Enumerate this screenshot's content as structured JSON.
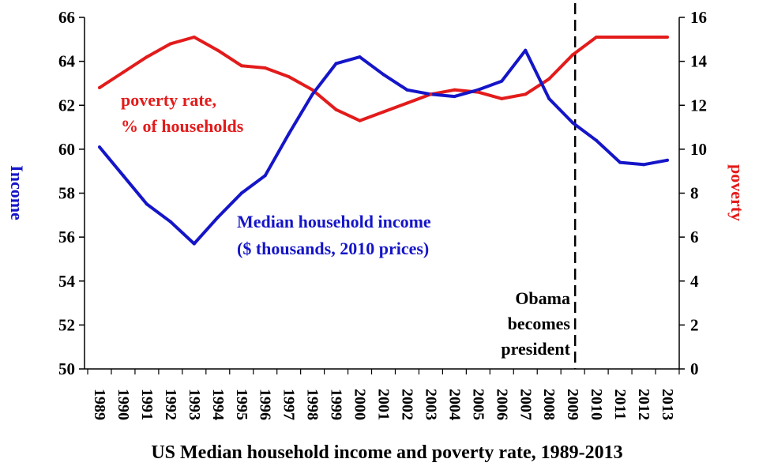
{
  "chart_data": {
    "type": "line",
    "title": "US Median household income and poverty rate, 1989-2013",
    "x": [
      "1989",
      "1990",
      "1991",
      "1992",
      "1993",
      "1994",
      "1995",
      "1996",
      "1997",
      "1998",
      "1999",
      "2000",
      "2001",
      "2002",
      "2003",
      "2004",
      "2005",
      "2006",
      "2007",
      "2008",
      "2009",
      "2010",
      "2011",
      "2012",
      "2013"
    ],
    "series": [
      {
        "name": "Median household income ($ thousands, 2010 prices)",
        "axis": "left",
        "color": "#1515c8",
        "values": [
          60.1,
          58.8,
          57.5,
          56.7,
          55.7,
          56.9,
          58.0,
          58.8,
          60.7,
          62.5,
          63.9,
          64.2,
          63.4,
          62.7,
          62.5,
          62.4,
          62.7,
          63.1,
          64.5,
          62.3,
          61.2,
          60.4,
          59.4,
          59.3,
          59.5
        ]
      },
      {
        "name": "poverty rate, % of households",
        "axis": "right",
        "color": "#e31b1b",
        "values": [
          12.8,
          13.5,
          14.2,
          14.8,
          15.1,
          14.5,
          13.8,
          13.7,
          13.3,
          12.7,
          11.8,
          11.3,
          11.7,
          12.1,
          12.5,
          12.7,
          12.6,
          12.3,
          12.5,
          13.2,
          14.3,
          15.1,
          15.1,
          15.1,
          15.1
        ]
      }
    ],
    "ylabel_left": "Income",
    "ylabel_right": "poverty",
    "ylim_left": [
      50,
      66
    ],
    "yticks_left": [
      50,
      52,
      54,
      56,
      58,
      60,
      62,
      64,
      66
    ],
    "ylim_right": [
      0,
      16
    ],
    "yticks_right": [
      0,
      2,
      4,
      6,
      8,
      10,
      12,
      14,
      16
    ],
    "grid": false,
    "vline_year": "2009",
    "annotations": {
      "poverty_label": [
        "poverty rate,",
        "% of households"
      ],
      "income_label": [
        "Median household income",
        "($ thousands, 2010 prices)"
      ],
      "event_label": [
        "Obama",
        "becomes",
        "president"
      ]
    }
  }
}
